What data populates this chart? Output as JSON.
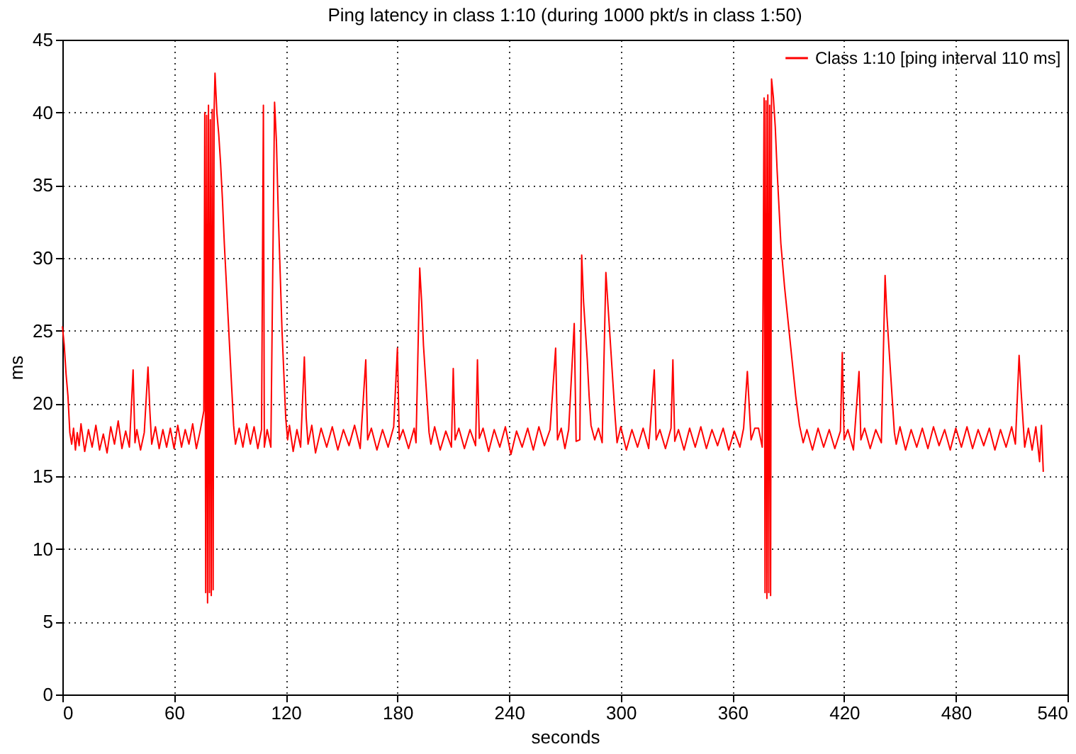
{
  "chart_data": {
    "type": "line",
    "title": "Ping latency in class 1:10 (during 1000 pkt/s in class 1:50)",
    "xlabel": "seconds",
    "ylabel": "ms",
    "xlim": [
      0,
      540
    ],
    "xticks": [
      0,
      60,
      120,
      180,
      240,
      300,
      360,
      420,
      480,
      540
    ],
    "ylim": [
      0,
      45
    ],
    "yticks": [
      0,
      5,
      10,
      15,
      20,
      25,
      30,
      35,
      40,
      45
    ],
    "grid": true,
    "legend": "top right",
    "marker": "none",
    "line_style": "solid",
    "series": [
      {
        "name": "Class 1:10 [ping interval 110 ms]",
        "color": "#ff0000",
        "x": [
          0,
          1,
          2,
          3,
          4,
          5,
          6,
          7,
          8,
          9,
          10,
          12,
          14,
          16,
          18,
          20,
          22,
          24,
          26,
          28,
          30,
          32,
          34,
          36,
          38,
          39,
          40,
          42,
          44,
          46,
          47,
          48,
          50,
          52,
          54,
          56,
          58,
          60,
          62,
          64,
          66,
          68,
          70,
          72,
          74,
          76,
          76.5,
          77,
          77.5,
          78,
          78.5,
          79,
          79.5,
          80,
          80.5,
          81,
          81.5,
          82,
          83,
          84,
          85,
          86,
          87,
          88,
          89,
          90,
          91,
          92,
          93,
          95,
          97,
          99,
          101,
          103,
          105,
          107,
          108,
          108.5,
          110,
          112,
          114,
          115,
          116,
          117,
          118,
          119,
          120,
          121,
          122,
          124,
          126,
          128,
          130,
          131,
          132,
          134,
          136,
          139,
          142,
          145,
          148,
          151,
          154,
          157,
          160,
          163,
          164,
          166,
          169,
          172,
          175,
          178,
          180,
          181,
          183,
          186,
          189,
          190,
          192,
          193,
          194,
          195,
          196,
          197,
          198,
          200,
          203,
          206,
          209,
          210,
          211,
          213,
          216,
          219,
          222,
          223,
          224,
          226,
          229,
          232,
          235,
          238,
          241,
          244,
          247,
          250,
          253,
          256,
          259,
          262,
          265,
          266,
          268,
          270,
          272,
          275,
          276,
          278,
          279,
          280,
          281,
          282,
          283,
          284,
          286,
          288,
          290,
          292,
          293,
          294,
          295,
          296,
          297,
          298,
          300,
          303,
          306,
          309,
          312,
          315,
          318,
          319,
          321,
          324,
          327,
          328,
          329,
          331,
          334,
          337,
          340,
          343,
          346,
          349,
          352,
          355,
          358,
          361,
          364,
          366,
          368,
          370,
          372,
          374,
          376,
          377,
          377.5,
          378,
          378.5,
          379,
          379.5,
          380,
          380.5,
          381,
          382,
          383,
          384,
          385,
          386,
          388,
          390,
          392,
          394,
          396,
          398,
          400,
          403,
          406,
          409,
          412,
          415,
          418,
          419,
          420,
          422,
          425,
          428,
          429,
          431,
          434,
          437,
          440,
          442,
          443,
          444,
          445,
          446,
          447,
          448,
          450,
          453,
          456,
          459,
          462,
          465,
          468,
          471,
          474,
          477,
          480,
          483,
          486,
          489,
          492,
          495,
          498,
          501,
          504,
          507,
          510,
          512,
          514,
          515,
          516,
          517,
          519,
          521,
          523,
          525,
          526,
          527
        ],
        "values": [
          25.3,
          24,
          22,
          20.5,
          18,
          17.2,
          18.3,
          16.8,
          18,
          17.1,
          18.6,
          16.7,
          18.2,
          17,
          18.5,
          16.8,
          17.9,
          16.6,
          18.4,
          17.2,
          18.8,
          16.9,
          18.1,
          17,
          22.3,
          17.3,
          18.2,
          16.8,
          18,
          22.5,
          19.5,
          17.2,
          18.4,
          16.9,
          18.2,
          17,
          18.3,
          16.9,
          18.5,
          17,
          18.2,
          17.2,
          18.6,
          16.9,
          18.1,
          19.5,
          40,
          7,
          39.8,
          6.3,
          40.5,
          7,
          39.5,
          6.8,
          40.2,
          7.2,
          40,
          42.7,
          40,
          38.5,
          36.5,
          34,
          31,
          28.5,
          26,
          23.5,
          21,
          18.5,
          17.2,
          18.3,
          17,
          18.6,
          17.2,
          18.4,
          16.9,
          18.2,
          40.5,
          17,
          18.2,
          17,
          40.7,
          38,
          33,
          29,
          25,
          22,
          19,
          17.5,
          18.5,
          16.7,
          18.2,
          17,
          23.2,
          19,
          17.2,
          18.5,
          16.6,
          18.3,
          17,
          18.4,
          16.8,
          18.2,
          17.1,
          18.5,
          16.9,
          23,
          17.5,
          18.3,
          16.8,
          18.2,
          17,
          18.4,
          23.8,
          17.5,
          18.2,
          16.9,
          18.3,
          17.3,
          29.3,
          27,
          24,
          22,
          20,
          18,
          17.2,
          18.4,
          16.8,
          18.1,
          17,
          22.4,
          17.5,
          18.3,
          16.9,
          18.2,
          17.1,
          23,
          17.6,
          18.3,
          16.7,
          18.2,
          17,
          18.4,
          16.5,
          18.1,
          17,
          18.3,
          16.8,
          18.4,
          17.1,
          18.2,
          23.8,
          17.5,
          18.3,
          16.9,
          18.2,
          25.5,
          17.4,
          17.5,
          30.2,
          27,
          25,
          23,
          20.5,
          18.5,
          17.5,
          18.3,
          17.3,
          29,
          27,
          25,
          23,
          21,
          19,
          17.3,
          18.4,
          16.8,
          18.2,
          17,
          18.3,
          16.9,
          22.3,
          17.5,
          18.2,
          16.9,
          18.3,
          23,
          17.4,
          18.2,
          16.8,
          18.3,
          17,
          18.4,
          16.9,
          18.2,
          17.1,
          18.3,
          16.8,
          18.1,
          17,
          18.3,
          22.2,
          17.5,
          18.3,
          18.3,
          17,
          41,
          7,
          40.8,
          6.6,
          41.2,
          7,
          40.5,
          6.8,
          42.3,
          41,
          39,
          36,
          33.5,
          31,
          28,
          25.5,
          23,
          20.5,
          18.5,
          17.3,
          18.2,
          16.8,
          18.3,
          17,
          18.2,
          16.9,
          18.1,
          23.5,
          17.5,
          18.2,
          16.8,
          22.2,
          17.5,
          18.3,
          16.9,
          18.2,
          17.3,
          28.8,
          26,
          24,
          22,
          20,
          18,
          17.2,
          18.4,
          16.8,
          18.2,
          17,
          18.3,
          16.9,
          18.4,
          17.1,
          18.2,
          16.8,
          18.3,
          17,
          18.4,
          16.9,
          18.2,
          17.1,
          18.3,
          16.8,
          18.2,
          17,
          18.4,
          17.2,
          23.3,
          21,
          19,
          17,
          18.3,
          16.8,
          18.4,
          16,
          18.5,
          15.3
        ]
      }
    ]
  }
}
